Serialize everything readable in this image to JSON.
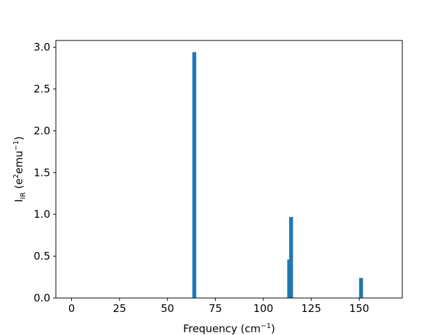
{
  "chart_data": {
    "type": "bar",
    "title": "",
    "xlabel": {
      "base": "Frequency (cm",
      "sup": "−1",
      "tail": ")"
    },
    "ylabel": {
      "base": "I",
      "sub": "IR",
      "mid": " (e",
      "sup1": "2",
      "mid2": "emu",
      "sup2": "−1",
      "tail": ")"
    },
    "xlim": [
      -8.2,
      172.5
    ],
    "ylim": [
      0,
      3.08
    ],
    "xticks": [
      0,
      25,
      50,
      75,
      100,
      125,
      150
    ],
    "xtick_labels": [
      "0",
      "25",
      "50",
      "75",
      "100",
      "125",
      "150"
    ],
    "yticks": [
      0.0,
      0.5,
      1.0,
      1.5,
      2.0,
      2.5,
      3.0
    ],
    "ytick_labels": [
      "0.0",
      "0.5",
      "1.0",
      "1.5",
      "2.0",
      "2.5",
      "3.0"
    ],
    "bar_color": "#1f77b4",
    "bar_width": 2,
    "series": [
      {
        "x": [
          64,
          113.5,
          114.5,
          151
        ],
        "values": [
          2.94,
          0.46,
          0.97,
          0.24
        ]
      }
    ],
    "grid": false,
    "legend": "none"
  }
}
